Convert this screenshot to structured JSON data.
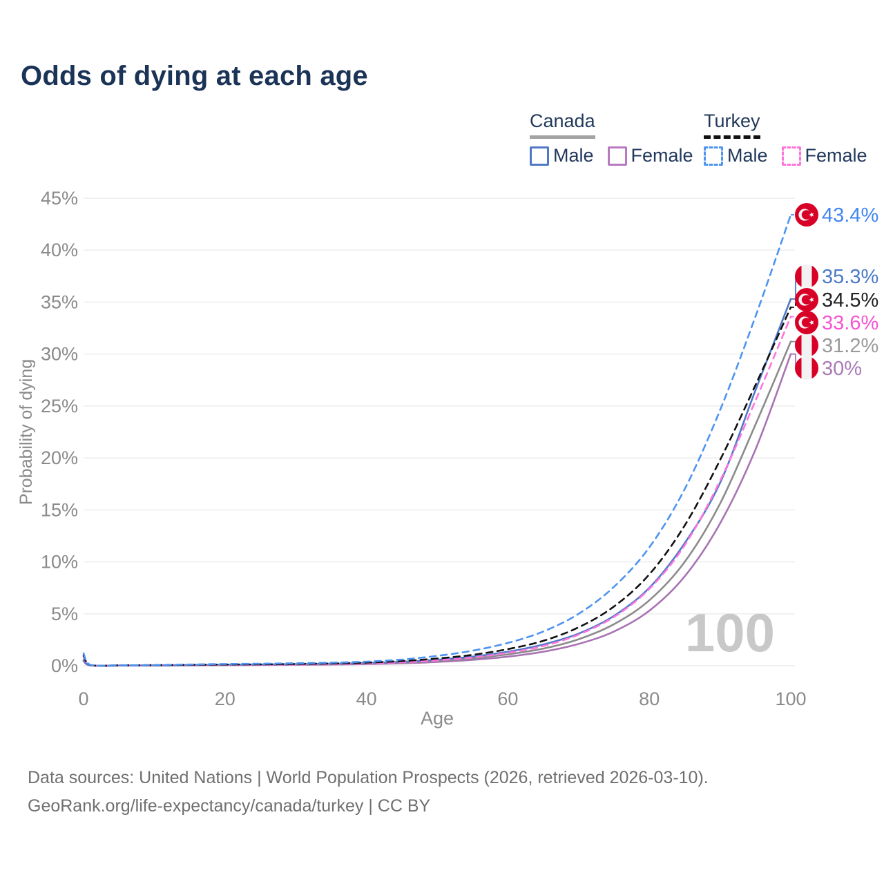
{
  "title": "Odds of dying at each age",
  "legend": {
    "groups": [
      {
        "country": "Canada",
        "line_style": "solid",
        "underline_color": "#a3a3a3",
        "items": [
          {
            "label": "Male",
            "color": "#4e79c7"
          },
          {
            "label": "Female",
            "color": "#b879c0"
          }
        ]
      },
      {
        "country": "Turkey",
        "line_style": "dashed",
        "underline_color": "#111111",
        "items": [
          {
            "label": "Male",
            "color": "#4e94f0"
          },
          {
            "label": "Female",
            "color": "#ff74dc"
          }
        ]
      }
    ]
  },
  "chart_data": {
    "type": "line",
    "title": "Odds of dying at each age",
    "xlabel": "Age",
    "ylabel": "Probability of dying",
    "xlim": [
      0,
      100
    ],
    "ylim": [
      0,
      45
    ],
    "x_ticks": [
      0,
      20,
      40,
      60,
      80,
      100
    ],
    "y_ticks": [
      45,
      40,
      35,
      30,
      25,
      20,
      15,
      10,
      5,
      0
    ],
    "y_tick_suffix": "%",
    "grid": "horizontal",
    "legend_position": "top-right",
    "watermark": "100",
    "x": [
      0,
      1,
      5,
      10,
      15,
      20,
      25,
      30,
      35,
      40,
      45,
      50,
      55,
      60,
      65,
      70,
      75,
      80,
      85,
      90,
      95,
      100
    ],
    "series": [
      {
        "name": "Canada Female",
        "country": "canada",
        "sex": "female",
        "color": "#a873b3",
        "dash": false,
        "end_label": "30%",
        "end_label_color": "#a87ab5",
        "end_value": 30,
        "values": [
          0.45,
          0.03,
          0.02,
          0.02,
          0.04,
          0.05,
          0.07,
          0.09,
          0.12,
          0.16,
          0.24,
          0.37,
          0.57,
          0.88,
          1.35,
          2.1,
          3.3,
          5.3,
          8.6,
          13.7,
          20.8,
          30.0
        ]
      },
      {
        "name": "Canada Both sexes",
        "country": "canada",
        "sex": "both",
        "color": "#8b8b8b",
        "dash": false,
        "end_label": "31.2%",
        "end_label_color": "#9a9a9a",
        "end_value": 31.2,
        "values": [
          0.5,
          0.035,
          0.02,
          0.03,
          0.05,
          0.08,
          0.1,
          0.12,
          0.15,
          0.21,
          0.31,
          0.47,
          0.72,
          1.1,
          1.65,
          2.55,
          4.0,
          6.3,
          10.0,
          15.6,
          23.2,
          31.2
        ]
      },
      {
        "name": "Canada Male",
        "country": "canada",
        "sex": "male",
        "color": "#4e79c7",
        "dash": false,
        "end_label": "35.3%",
        "end_label_color": "#4a7ac9",
        "end_value": 35.3,
        "values": [
          0.55,
          0.04,
          0.02,
          0.03,
          0.06,
          0.1,
          0.12,
          0.15,
          0.19,
          0.26,
          0.38,
          0.58,
          0.88,
          1.35,
          2.05,
          3.1,
          4.8,
          7.5,
          11.8,
          17.6,
          26.5,
          35.3
        ]
      },
      {
        "name": "Turkey Female",
        "country": "turkey",
        "sex": "female",
        "color": "#ff74dc",
        "dash": true,
        "end_label": "33.6%",
        "end_label_color": "#f655d2",
        "end_value": 33.6,
        "values": [
          0.9,
          0.06,
          0.04,
          0.05,
          0.07,
          0.09,
          0.1,
          0.12,
          0.16,
          0.22,
          0.33,
          0.52,
          0.8,
          1.25,
          1.9,
          3.0,
          4.7,
          7.4,
          11.6,
          17.8,
          25.5,
          33.6
        ]
      },
      {
        "name": "Turkey Both sexes",
        "country": "turkey",
        "sex": "both",
        "color": "#111111",
        "dash": true,
        "end_label": "34.5%",
        "end_label_color": "#222222",
        "end_value": 34.5,
        "values": [
          1.0,
          0.07,
          0.04,
          0.06,
          0.09,
          0.12,
          0.14,
          0.17,
          0.22,
          0.3,
          0.45,
          0.7,
          1.05,
          1.6,
          2.4,
          3.7,
          5.7,
          8.8,
          13.5,
          19.8,
          27.0,
          34.5
        ]
      },
      {
        "name": "Turkey Male",
        "country": "turkey",
        "sex": "male",
        "color": "#4e94f0",
        "dash": true,
        "end_label": "43.4%",
        "end_label_color": "#4286f0",
        "end_value": 43.4,
        "values": [
          1.2,
          0.08,
          0.05,
          0.07,
          0.12,
          0.17,
          0.2,
          0.24,
          0.3,
          0.4,
          0.6,
          0.95,
          1.45,
          2.2,
          3.3,
          5.0,
          7.6,
          11.4,
          17.0,
          24.6,
          33.6,
          43.4
        ]
      }
    ]
  },
  "colors": {
    "title": "#1b3356",
    "axis_text": "#8a8a8a",
    "gridline": "#ebebeb",
    "watermark": "#c8c8c8",
    "footer_text": "#6f6f6f",
    "flag_red": "#d80027",
    "flag_white": "#f2f2f2"
  },
  "footer": {
    "line1": "Data sources: United Nations | World Population Prospects (2026, retrieved 2026-03-10).",
    "line2": "GeoRank.org/life-expectancy/canada/turkey | CC BY"
  }
}
